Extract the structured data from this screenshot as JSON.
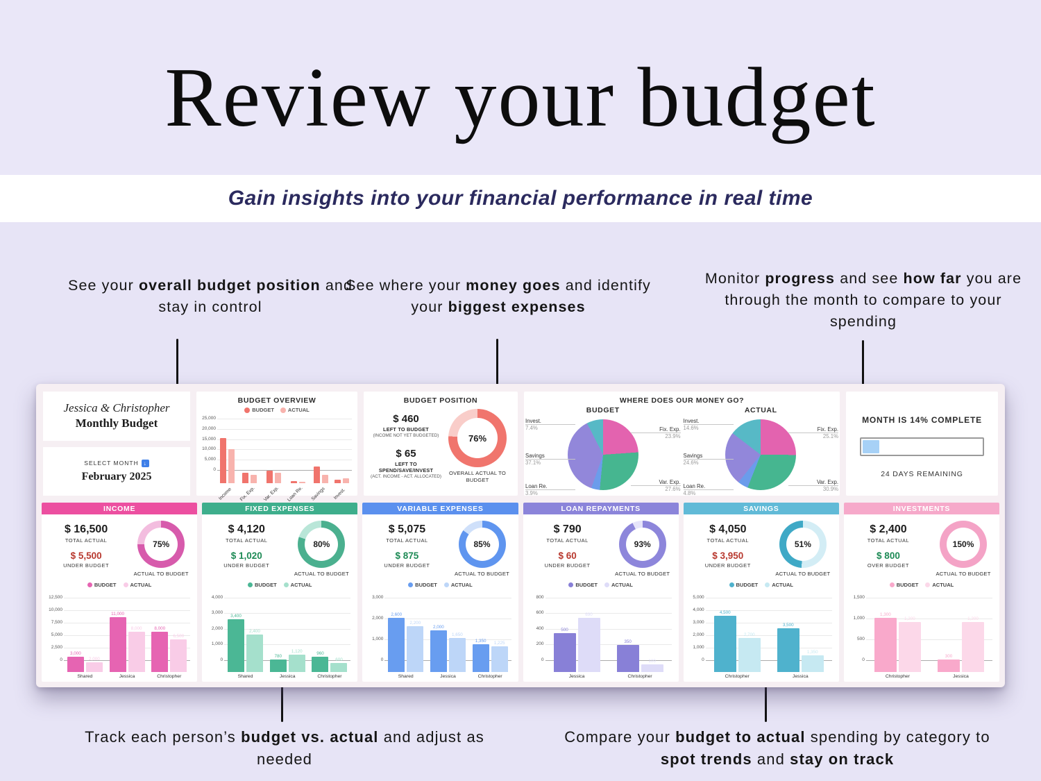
{
  "header": {
    "title": "Review your budget",
    "subtitle": "Gain insights into your financial performance in real time"
  },
  "annotations": {
    "budget_position": [
      {
        "t": "See your "
      },
      {
        "t": "overall budget position",
        "b": true
      },
      {
        "t": " and stay in control"
      }
    ],
    "money_goes": [
      {
        "t": "See where your "
      },
      {
        "t": "money goes",
        "b": true
      },
      {
        "t": " and identify your "
      },
      {
        "t": "biggest expenses",
        "b": true
      }
    ],
    "progress": [
      {
        "t": "Monitor "
      },
      {
        "t": "progress",
        "b": true
      },
      {
        "t": " and see "
      },
      {
        "t": "how far",
        "b": true
      },
      {
        "t": " you are through the month to compare to your spending"
      }
    ],
    "person_tracking": [
      {
        "t": "Track each person’s "
      },
      {
        "t": "budget vs. actual",
        "b": true
      },
      {
        "t": " and adjust as needed"
      }
    ],
    "category_compare": [
      {
        "t": "Compare your "
      },
      {
        "t": "budget to actual",
        "b": true
      },
      {
        "t": " spending by category to "
      },
      {
        "t": "spot trends",
        "b": true
      },
      {
        "t": " and "
      },
      {
        "t": "stay on track",
        "b": true
      }
    ]
  },
  "dashboard": {
    "profile": {
      "names": "Jessica & Christopher",
      "title": "Monthly Budget",
      "select_label": "SELECT MONTH",
      "select_icon": "↓",
      "month": "February 2025"
    },
    "overview": {
      "type": "bar",
      "title": "BUDGET OVERVIEW",
      "legend": [
        "BUDGET",
        "ACTUAL"
      ],
      "categories": [
        "Income",
        "Fix. Exp.",
        "Var. Exp.",
        "Loan Re.",
        "Savings",
        "Invest."
      ],
      "budget": [
        22000,
        5140,
        5950,
        850,
        8000,
        1600
      ],
      "actual": [
        16500,
        4120,
        5075,
        790,
        4050,
        2400
      ],
      "yticks": [
        0,
        5000,
        10000,
        15000,
        20000,
        25000
      ],
      "colors": {
        "budget": "#f0746c",
        "actual": "#f8b3ad"
      }
    },
    "position": {
      "title": "BUDGET POSITION",
      "left_to_budget": {
        "value": "$ 460",
        "label": "LEFT TO BUDGET",
        "sub": "(INCOME NOT YET BUDGETED)"
      },
      "left_to_spend": {
        "value": "$ 65",
        "label": "LEFT TO SPEND/SAVE/INVEST",
        "sub": "(ACT. INCOME - ACT. ALLOCATED)"
      },
      "donut": {
        "percent": 76,
        "label": "76%",
        "caption": "OVERALL ACTUAL TO BUDGET",
        "color": "#f0756d",
        "track": "#f9cdc9"
      }
    },
    "money_go": {
      "title": "WHERE DOES OUR MONEY GO?",
      "pies": [
        {
          "type": "pie",
          "title": "BUDGET",
          "slices": [
            {
              "label": "Fix. Exp.",
              "pct": 23.9,
              "color": "#e363af"
            },
            {
              "label": "Var. Exp.",
              "pct": 27.6,
              "color": "#46b690"
            },
            {
              "label": "Loan Re.",
              "pct": 3.9,
              "color": "#6b9ceb"
            },
            {
              "label": "Savings",
              "pct": 37.1,
              "color": "#9287da"
            },
            {
              "label": "Invest.",
              "pct": 7.4,
              "color": "#57b9c6"
            }
          ]
        },
        {
          "type": "pie",
          "title": "ACTUAL",
          "slices": [
            {
              "label": "Fix. Exp.",
              "pct": 25.1,
              "color": "#e363af"
            },
            {
              "label": "Var. Exp.",
              "pct": 30.9,
              "color": "#46b690"
            },
            {
              "label": "Loan Re.",
              "pct": 4.8,
              "color": "#6b9ceb"
            },
            {
              "label": "Savings",
              "pct": 24.6,
              "color": "#9287da"
            },
            {
              "label": "Invest.",
              "pct": 14.6,
              "color": "#57b9c6"
            }
          ]
        }
      ]
    },
    "month_progress": {
      "title": "MONTH IS 14% COMPLETE",
      "percent": 14,
      "remaining": "24 DAYS REMAINING",
      "fill_color": "#a7d1f6"
    },
    "card_legend": [
      "BUDGET",
      "ACTUAL"
    ],
    "cards": [
      {
        "title": "INCOME",
        "total": "$ 16,500",
        "total_label": "TOTAL ACTUAL",
        "delta": "$ 5,500",
        "delta_label": "UNDER BUDGET",
        "delta_color": "#b8392f",
        "percent": 75,
        "percent_label": "75%",
        "donut_caption": "ACTUAL TO BUDGET",
        "colors": {
          "header": "#ec4fa0",
          "bar": "#e664b2",
          "bar_light": "#f9cce7",
          "donut": "#d75bac",
          "donut_light": "#f3bddf"
        },
        "chart": {
          "type": "bar",
          "categories": [
            "Shared",
            "Jessica",
            "Christopher"
          ],
          "budget": [
            3000,
            11000,
            8000
          ],
          "actual": [
            2000,
            8000,
            6500
          ],
          "yticks": [
            0,
            2500,
            5000,
            7500,
            10000,
            12500
          ]
        }
      },
      {
        "title": "FIXED EXPENSES",
        "total": "$ 4,120",
        "total_label": "TOTAL ACTUAL",
        "delta": "$ 1,020",
        "delta_label": "UNDER BUDGET",
        "delta_color": "#1d8a55",
        "percent": 80,
        "percent_label": "80%",
        "donut_caption": "ACTUAL TO BUDGET",
        "colors": {
          "header": "#3eae8c",
          "bar": "#4bb795",
          "bar_light": "#a5e0cc",
          "donut": "#4bb08f",
          "donut_light": "#b9e6d8"
        },
        "chart": {
          "type": "bar",
          "categories": [
            "Shared",
            "Jessica",
            "Christopher"
          ],
          "budget": [
            3400,
            780,
            960
          ],
          "actual": [
            2400,
            1120,
            600
          ],
          "yticks": [
            0,
            1000,
            2000,
            3000,
            4000
          ]
        }
      },
      {
        "title": "VARIABLE EXPENSES",
        "total": "$ 5,075",
        "total_label": "TOTAL ACTUAL",
        "delta": "$ 875",
        "delta_label": "UNDER BUDGET",
        "delta_color": "#1d8a55",
        "percent": 85,
        "percent_label": "85%",
        "donut_caption": "ACTUAL TO BUDGET",
        "colors": {
          "header": "#5b90ee",
          "bar": "#689df0",
          "bar_light": "#bdd6f8",
          "donut": "#5f95ef",
          "donut_light": "#cfe0fa"
        },
        "chart": {
          "type": "bar",
          "categories": [
            "Shared",
            "Jessica",
            "Christopher"
          ],
          "budget": [
            2600,
            2000,
            1350
          ],
          "actual": [
            2200,
            1650,
            1225
          ],
          "yticks": [
            0,
            1000,
            2000,
            3000
          ]
        }
      },
      {
        "title": "LOAN REPAYMENTS",
        "total": "$ 790",
        "total_label": "TOTAL ACTUAL",
        "delta": "$ 60",
        "delta_label": "UNDER BUDGET",
        "delta_color": "#b8392f",
        "percent": 93,
        "percent_label": "93%",
        "donut_caption": "ACTUAL TO BUDGET",
        "colors": {
          "header": "#8b84da",
          "bar": "#8880d7",
          "bar_light": "#dedcf8",
          "donut": "#8d86db",
          "donut_light": "#e6e4fa"
        },
        "chart": {
          "type": "bar",
          "categories": [
            "Jessica",
            "Christopher"
          ],
          "budget": [
            500,
            350
          ],
          "actual": [
            690,
            100
          ],
          "yticks": [
            0,
            200,
            400,
            600,
            800
          ]
        }
      },
      {
        "title": "SAVINGS",
        "total": "$ 4,050",
        "total_label": "TOTAL ACTUAL",
        "delta": "$ 3,950",
        "delta_label": "UNDER BUDGET",
        "delta_color": "#b8392f",
        "percent": 51,
        "percent_label": "51%",
        "donut_caption": "ACTUAL TO BUDGET",
        "donut_invert": true,
        "colors": {
          "header": "#61bad7",
          "bar": "#4fb2cd",
          "bar_light": "#c6e9f2",
          "donut": "#3fa9c6",
          "donut_light": "#d3edf5"
        },
        "chart": {
          "type": "bar",
          "categories": [
            "Christopher",
            "Jessica"
          ],
          "budget": [
            4500,
            3500
          ],
          "actual": [
            2700,
            1350
          ],
          "yticks": [
            0,
            1000,
            2000,
            3000,
            4000,
            5000
          ]
        }
      },
      {
        "title": "INVESTMENTS",
        "total": "$ 2,400",
        "total_label": "TOTAL ACTUAL",
        "delta": "$ 800",
        "delta_label": "OVER BUDGET",
        "delta_color": "#1d8a55",
        "percent": 150,
        "percent_label": "150%",
        "donut_caption": "ACTUAL TO BUDGET",
        "colors": {
          "header": "#f6a9ca",
          "bar": "#f9a9cb",
          "bar_light": "#fcd8e9",
          "donut": "#f4a3c6",
          "donut_light": "#fbdcea"
        },
        "chart": {
          "type": "bar",
          "categories": [
            "Christopher",
            "Jessica"
          ],
          "budget": [
            1300,
            300
          ],
          "actual": [
            1200,
            1200
          ],
          "yticks": [
            0,
            500,
            1000,
            1500
          ]
        }
      }
    ]
  }
}
